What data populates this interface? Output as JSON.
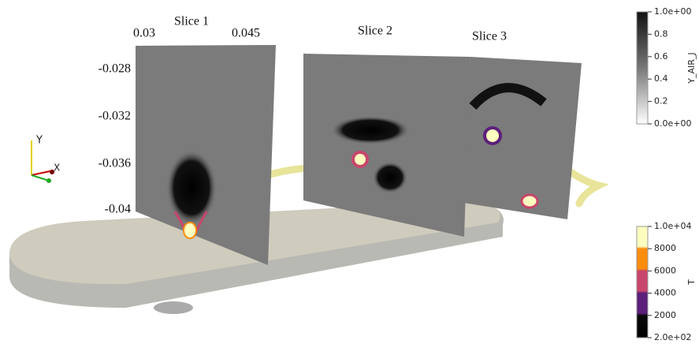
{
  "slices": [
    {
      "title": "Slice 1"
    },
    {
      "title": "Slice 2"
    },
    {
      "title": "Slice 3"
    }
  ],
  "slice_axes": {
    "horizontal_labels": [
      "0.03",
      "0.045"
    ],
    "vertical_labels": [
      "-0.028",
      "-0.032",
      "-0.036",
      "-0.04"
    ]
  },
  "orientation_axes": {
    "y": "Y",
    "x": "X"
  },
  "colorbars": [
    {
      "title": "Y_AIR_J",
      "labels": [
        "1.0e+00",
        "0.8",
        "0.6",
        "0.4",
        "0.2",
        "0.0e+00"
      ]
    },
    {
      "title": "T",
      "labels": [
        "1.0e+04",
        "8000",
        "6000",
        "4000",
        "2000",
        "2.0e+02"
      ]
    }
  ]
}
